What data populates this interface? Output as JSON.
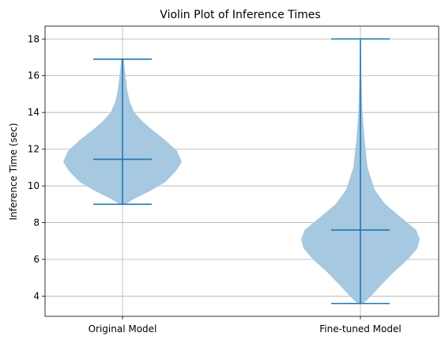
{
  "chart_data": {
    "type": "violin",
    "title": "Violin Plot of Inference Times",
    "xlabel": "",
    "ylabel": "Inference Time (sec)",
    "ylim": [
      2.9,
      18.7
    ],
    "yticks": [
      4,
      6,
      8,
      10,
      12,
      14,
      16,
      18
    ],
    "grid": true,
    "colors": {
      "body": "#a6c8e0",
      "lines": "#1f77b4",
      "grid": "#b0b0b0"
    },
    "categories": [
      "Original Model",
      "Fine-tuned Model"
    ],
    "series": [
      {
        "category": "Original Model",
        "min": 9.0,
        "median": 11.45,
        "max": 16.9,
        "density": [
          [
            9.0,
            0.05
          ],
          [
            9.3,
            0.2
          ],
          [
            9.7,
            0.45
          ],
          [
            10.2,
            0.72
          ],
          [
            10.8,
            0.9
          ],
          [
            11.3,
            1.0
          ],
          [
            11.9,
            0.92
          ],
          [
            12.5,
            0.72
          ],
          [
            13.0,
            0.52
          ],
          [
            13.5,
            0.34
          ],
          [
            14.0,
            0.2
          ],
          [
            14.6,
            0.12
          ],
          [
            15.2,
            0.08
          ],
          [
            16.0,
            0.05
          ],
          [
            16.9,
            0.02
          ]
        ]
      },
      {
        "category": "Fine-tuned Model",
        "min": 3.6,
        "median": 7.6,
        "max": 18.0,
        "density": [
          [
            3.6,
            0.05
          ],
          [
            4.0,
            0.18
          ],
          [
            4.6,
            0.35
          ],
          [
            5.3,
            0.56
          ],
          [
            6.0,
            0.8
          ],
          [
            6.6,
            0.96
          ],
          [
            7.1,
            1.0
          ],
          [
            7.6,
            0.94
          ],
          [
            8.3,
            0.68
          ],
          [
            9.0,
            0.42
          ],
          [
            9.8,
            0.24
          ],
          [
            11.0,
            0.12
          ],
          [
            12.5,
            0.07
          ],
          [
            14.0,
            0.035
          ],
          [
            16.0,
            0.015
          ],
          [
            17.3,
            0.01
          ],
          [
            18.0,
            0.005
          ]
        ]
      }
    ]
  }
}
